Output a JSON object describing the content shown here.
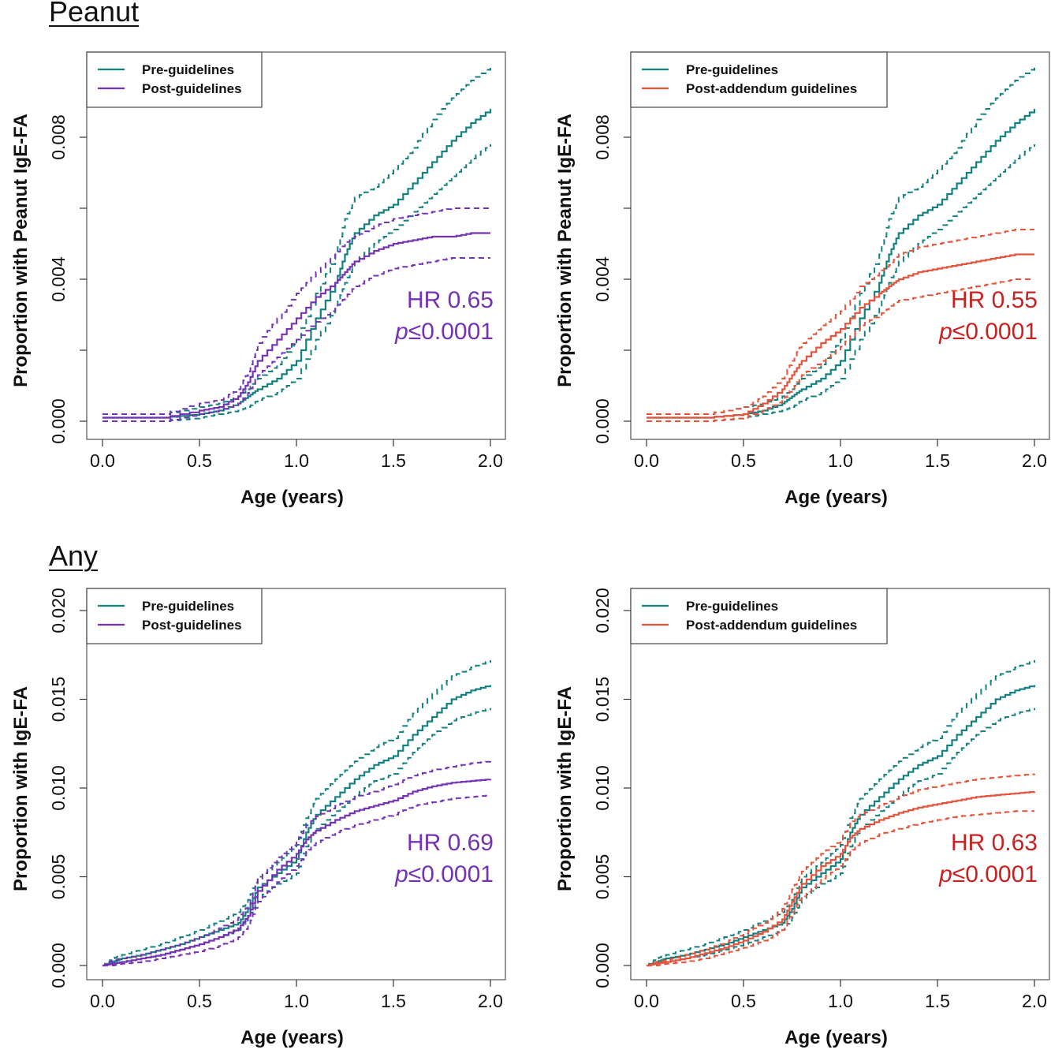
{
  "sections": [
    {
      "title": "Peanut"
    },
    {
      "title": "Any"
    }
  ],
  "colors": {
    "pre": "#148080",
    "post": "#7433b3",
    "addendum": "#e4533a",
    "hr_post": "#7433b3",
    "hr_addendum": "#c72222"
  },
  "chart_data": [
    {
      "type": "line",
      "xlabel": "Age (years)",
      "ylabel": "Proportion with Peanut IgE-FA",
      "xlim": [
        0,
        2
      ],
      "ylim": [
        0,
        0.01
      ],
      "xticks": [
        "0.0",
        "0.5",
        "1.0",
        "1.5",
        "2.0"
      ],
      "yticks": [
        "0.000",
        "",
        "0.004",
        "",
        "0.008"
      ],
      "ytick_values": [
        0,
        0.002,
        0.004,
        0.006,
        0.008
      ],
      "legend": {
        "position": "top-left",
        "entries": [
          "Pre-guidelines",
          "Post-guidelines"
        ]
      },
      "annotation": {
        "hr": "HR 0.65",
        "p_italic": "p",
        "p_rest": "≤0.0001"
      },
      "series": [
        {
          "name": "Pre-guidelines",
          "color_key": "pre",
          "x": [
            0,
            0.3,
            0.5,
            0.6,
            0.7,
            0.75,
            0.8,
            0.9,
            1.0,
            1.1,
            1.2,
            1.25,
            1.3,
            1.4,
            1.5,
            1.6,
            1.7,
            1.8,
            1.9,
            2.0
          ],
          "y": [
            0.0001,
            0.0001,
            0.0002,
            0.0003,
            0.0005,
            0.0007,
            0.0009,
            0.0012,
            0.0017,
            0.0029,
            0.0039,
            0.0047,
            0.0053,
            0.0058,
            0.0061,
            0.0067,
            0.0073,
            0.0079,
            0.0084,
            0.0088
          ],
          "lower": [
            0,
            0,
            0.0001,
            0.0002,
            0.0003,
            0.0004,
            0.0006,
            0.0008,
            0.0012,
            0.0023,
            0.0032,
            0.0039,
            0.0045,
            0.005,
            0.0054,
            0.0059,
            0.0064,
            0.0069,
            0.0074,
            0.0078
          ],
          "upper": [
            0.0002,
            0.0002,
            0.0004,
            0.0005,
            0.0007,
            0.0009,
            0.0012,
            0.0016,
            0.0023,
            0.0036,
            0.0047,
            0.0057,
            0.0063,
            0.0066,
            0.0071,
            0.0077,
            0.0085,
            0.0091,
            0.0096,
            0.01
          ]
        },
        {
          "name": "Post-guidelines",
          "color_key": "post",
          "x": [
            0,
            0.3,
            0.5,
            0.6,
            0.7,
            0.75,
            0.8,
            0.9,
            1.0,
            1.1,
            1.2,
            1.25,
            1.3,
            1.4,
            1.5,
            1.6,
            1.7,
            1.8,
            1.9,
            2.0
          ],
          "y": [
            0.0001,
            0.0001,
            0.0003,
            0.0004,
            0.0007,
            0.0011,
            0.0017,
            0.0023,
            0.0029,
            0.0035,
            0.0039,
            0.0042,
            0.0045,
            0.0048,
            0.005,
            0.0051,
            0.0052,
            0.0052,
            0.0053,
            0.0053
          ],
          "lower": [
            0,
            0,
            0.0002,
            0.0003,
            0.0005,
            0.0008,
            0.0013,
            0.0018,
            0.0023,
            0.0028,
            0.0032,
            0.0035,
            0.0038,
            0.0041,
            0.0043,
            0.0044,
            0.0045,
            0.0046,
            0.0046,
            0.0046
          ],
          "upper": [
            0.0002,
            0.0002,
            0.0005,
            0.0006,
            0.0009,
            0.0014,
            0.0022,
            0.0029,
            0.0036,
            0.0042,
            0.0047,
            0.005,
            0.0052,
            0.0055,
            0.0057,
            0.0058,
            0.0059,
            0.006,
            0.006,
            0.006
          ]
        }
      ]
    },
    {
      "type": "line",
      "xlabel": "Age (years)",
      "ylabel": "Proportion with Peanut IgE-FA",
      "xlim": [
        0,
        2
      ],
      "ylim": [
        0,
        0.01
      ],
      "xticks": [
        "0.0",
        "0.5",
        "1.0",
        "1.5",
        "2.0"
      ],
      "yticks": [
        "0.000",
        "",
        "0.004",
        "",
        "0.008"
      ],
      "ytick_values": [
        0,
        0.002,
        0.004,
        0.006,
        0.008
      ],
      "legend": {
        "position": "top-left",
        "entries": [
          "Pre-guidelines",
          "Post-addendum guidelines"
        ]
      },
      "annotation": {
        "hr": "HR 0.55",
        "p_italic": "p",
        "p_rest": "≤0.0001"
      },
      "series": [
        {
          "name": "Pre-guidelines",
          "color_key": "pre",
          "x": [
            0,
            0.3,
            0.5,
            0.6,
            0.7,
            0.75,
            0.8,
            0.9,
            1.0,
            1.1,
            1.2,
            1.25,
            1.3,
            1.4,
            1.5,
            1.6,
            1.7,
            1.8,
            1.9,
            2.0
          ],
          "y": [
            0.0001,
            0.0001,
            0.0002,
            0.0003,
            0.0005,
            0.0007,
            0.0009,
            0.0012,
            0.0017,
            0.0029,
            0.0039,
            0.0047,
            0.0053,
            0.0058,
            0.0061,
            0.0067,
            0.0073,
            0.0079,
            0.0084,
            0.0088
          ],
          "lower": [
            0,
            0,
            0.0001,
            0.0002,
            0.0003,
            0.0004,
            0.0006,
            0.0008,
            0.0012,
            0.0023,
            0.0032,
            0.0039,
            0.0045,
            0.005,
            0.0054,
            0.0059,
            0.0064,
            0.0069,
            0.0074,
            0.0078
          ],
          "upper": [
            0.0002,
            0.0002,
            0.0004,
            0.0005,
            0.0007,
            0.0009,
            0.0012,
            0.0016,
            0.0023,
            0.0036,
            0.0047,
            0.0057,
            0.0063,
            0.0066,
            0.0071,
            0.0077,
            0.0085,
            0.0091,
            0.0096,
            0.01
          ]
        },
        {
          "name": "Post-addendum guidelines",
          "color_key": "addendum",
          "x": [
            0,
            0.3,
            0.5,
            0.6,
            0.7,
            0.75,
            0.8,
            0.9,
            1.0,
            1.1,
            1.2,
            1.25,
            1.3,
            1.4,
            1.5,
            1.6,
            1.7,
            1.8,
            1.9,
            2.0
          ],
          "y": [
            0.0001,
            0.0001,
            0.0002,
            0.0005,
            0.0009,
            0.0013,
            0.0017,
            0.0022,
            0.0026,
            0.0032,
            0.0036,
            0.0038,
            0.004,
            0.0042,
            0.0043,
            0.0044,
            0.0045,
            0.0046,
            0.0047,
            0.0047
          ],
          "lower": [
            0,
            0,
            0.0001,
            0.0003,
            0.0006,
            0.0009,
            0.0013,
            0.0017,
            0.0021,
            0.0027,
            0.003,
            0.0032,
            0.0034,
            0.0035,
            0.0036,
            0.0037,
            0.0038,
            0.0039,
            0.004,
            0.004
          ],
          "upper": [
            0.0002,
            0.0002,
            0.0004,
            0.0007,
            0.0012,
            0.0017,
            0.0022,
            0.0027,
            0.0031,
            0.0038,
            0.0042,
            0.0044,
            0.0047,
            0.0049,
            0.005,
            0.0051,
            0.0052,
            0.0053,
            0.0054,
            0.0054
          ]
        }
      ]
    },
    {
      "type": "line",
      "xlabel": "Age (years)",
      "ylabel": "Proportion with IgE-FA",
      "xlim": [
        0,
        2
      ],
      "ylim": [
        0,
        0.02
      ],
      "xticks": [
        "0.0",
        "0.5",
        "1.0",
        "1.5",
        "2.0"
      ],
      "yticks": [
        "0.000",
        "0.005",
        "0.010",
        "0.015",
        "0.020"
      ],
      "ytick_values": [
        0,
        0.005,
        0.01,
        0.015,
        0.02
      ],
      "legend": {
        "position": "top-left",
        "entries": [
          "Pre-guidelines",
          "Post-guidelines"
        ]
      },
      "annotation": {
        "hr": "HR 0.69",
        "p_italic": "p",
        "p_rest": "≤0.0001"
      },
      "series": [
        {
          "name": "Pre-guidelines",
          "color_key": "pre",
          "x": [
            0,
            0.05,
            0.1,
            0.2,
            0.3,
            0.4,
            0.5,
            0.6,
            0.7,
            0.75,
            0.8,
            0.9,
            1.0,
            1.05,
            1.1,
            1.2,
            1.3,
            1.4,
            1.5,
            1.6,
            1.7,
            1.8,
            1.9,
            2.0
          ],
          "y": [
            0,
            0.0002,
            0.0004,
            0.0006,
            0.0009,
            0.0012,
            0.0016,
            0.002,
            0.0024,
            0.0032,
            0.0044,
            0.0052,
            0.006,
            0.0075,
            0.0085,
            0.0095,
            0.0105,
            0.0113,
            0.0118,
            0.013,
            0.014,
            0.015,
            0.0155,
            0.0158
          ],
          "lower": [
            0,
            0.0001,
            0.0002,
            0.0004,
            0.0006,
            0.0009,
            0.0012,
            0.0016,
            0.002,
            0.0027,
            0.0038,
            0.0046,
            0.0052,
            0.0067,
            0.0077,
            0.0087,
            0.0096,
            0.0104,
            0.0108,
            0.012,
            0.013,
            0.0138,
            0.0142,
            0.0145
          ],
          "upper": [
            0,
            0.0004,
            0.0006,
            0.0009,
            0.0012,
            0.0016,
            0.002,
            0.0025,
            0.003,
            0.0037,
            0.005,
            0.0058,
            0.0068,
            0.0083,
            0.0094,
            0.0105,
            0.0115,
            0.0123,
            0.0128,
            0.0142,
            0.0153,
            0.0163,
            0.0168,
            0.0172
          ]
        },
        {
          "name": "Post-guidelines",
          "color_key": "post",
          "x": [
            0,
            0.05,
            0.1,
            0.2,
            0.3,
            0.4,
            0.5,
            0.6,
            0.7,
            0.75,
            0.8,
            0.9,
            1.0,
            1.05,
            1.1,
            1.2,
            1.3,
            1.4,
            1.5,
            1.6,
            1.7,
            1.8,
            1.9,
            2.0
          ],
          "y": [
            0,
            0.0001,
            0.0002,
            0.0004,
            0.0006,
            0.0009,
            0.0012,
            0.0016,
            0.0021,
            0.0028,
            0.0042,
            0.0054,
            0.0063,
            0.0071,
            0.0076,
            0.0082,
            0.0087,
            0.009,
            0.0093,
            0.0098,
            0.0101,
            0.0103,
            0.0104,
            0.0105
          ],
          "lower": [
            0,
            0,
            0.0001,
            0.0002,
            0.0004,
            0.0006,
            0.0008,
            0.0011,
            0.0016,
            0.0022,
            0.0036,
            0.0047,
            0.0056,
            0.0064,
            0.0069,
            0.0075,
            0.0079,
            0.0082,
            0.0085,
            0.009,
            0.0092,
            0.0094,
            0.0095,
            0.0096
          ],
          "upper": [
            0,
            0.0003,
            0.0004,
            0.0006,
            0.0009,
            0.0012,
            0.0016,
            0.0021,
            0.0027,
            0.0034,
            0.0049,
            0.0061,
            0.007,
            0.0079,
            0.0084,
            0.009,
            0.0095,
            0.0098,
            0.0102,
            0.0107,
            0.011,
            0.0112,
            0.0114,
            0.0115
          ]
        }
      ]
    },
    {
      "type": "line",
      "xlabel": "Age (years)",
      "ylabel": "Proportion with IgE-FA",
      "xlim": [
        0,
        2
      ],
      "ylim": [
        0,
        0.02
      ],
      "xticks": [
        "0.0",
        "0.5",
        "1.0",
        "1.5",
        "2.0"
      ],
      "yticks": [
        "0.000",
        "0.005",
        "0.010",
        "0.015",
        "0.020"
      ],
      "ytick_values": [
        0,
        0.005,
        0.01,
        0.015,
        0.02
      ],
      "legend": {
        "position": "top-left",
        "entries": [
          "Pre-guidelines",
          "Post-addendum guidelines"
        ]
      },
      "annotation": {
        "hr": "HR 0.63",
        "p_italic": "p",
        "p_rest": "≤0.0001"
      },
      "series": [
        {
          "name": "Pre-guidelines",
          "color_key": "pre",
          "x": [
            0,
            0.05,
            0.1,
            0.2,
            0.3,
            0.4,
            0.5,
            0.6,
            0.7,
            0.75,
            0.8,
            0.9,
            1.0,
            1.05,
            1.1,
            1.2,
            1.3,
            1.4,
            1.5,
            1.6,
            1.7,
            1.8,
            1.9,
            2.0
          ],
          "y": [
            0,
            0.0002,
            0.0004,
            0.0006,
            0.0009,
            0.0012,
            0.0016,
            0.002,
            0.0024,
            0.0032,
            0.0044,
            0.0052,
            0.006,
            0.0075,
            0.0085,
            0.0095,
            0.0105,
            0.0113,
            0.0118,
            0.013,
            0.014,
            0.015,
            0.0155,
            0.0158
          ],
          "lower": [
            0,
            0.0001,
            0.0002,
            0.0004,
            0.0006,
            0.0009,
            0.0012,
            0.0016,
            0.002,
            0.0027,
            0.0038,
            0.0046,
            0.0052,
            0.0067,
            0.0077,
            0.0087,
            0.0096,
            0.0104,
            0.0108,
            0.012,
            0.013,
            0.0138,
            0.0142,
            0.0145
          ],
          "upper": [
            0,
            0.0004,
            0.0006,
            0.0009,
            0.0012,
            0.0016,
            0.002,
            0.0025,
            0.003,
            0.0037,
            0.005,
            0.0058,
            0.0068,
            0.0083,
            0.0094,
            0.0105,
            0.0115,
            0.0123,
            0.0128,
            0.0142,
            0.0153,
            0.0163,
            0.0168,
            0.0172
          ]
        },
        {
          "name": "Post-addendum guidelines",
          "color_key": "addendum",
          "x": [
            0,
            0.05,
            0.1,
            0.2,
            0.3,
            0.4,
            0.5,
            0.6,
            0.7,
            0.75,
            0.8,
            0.9,
            1.0,
            1.05,
            1.1,
            1.2,
            1.3,
            1.4,
            1.5,
            1.6,
            1.7,
            1.8,
            1.9,
            2.0
          ],
          "y": [
            0,
            0.0001,
            0.0002,
            0.0004,
            0.0007,
            0.001,
            0.0014,
            0.0019,
            0.0026,
            0.0036,
            0.0046,
            0.0056,
            0.0063,
            0.0072,
            0.0077,
            0.0082,
            0.0086,
            0.0089,
            0.0091,
            0.0093,
            0.0095,
            0.0096,
            0.0097,
            0.0098
          ],
          "lower": [
            0,
            0,
            0.0001,
            0.0002,
            0.0004,
            0.0007,
            0.001,
            0.0014,
            0.002,
            0.003,
            0.0039,
            0.0049,
            0.0056,
            0.0064,
            0.0069,
            0.0074,
            0.0077,
            0.008,
            0.0082,
            0.0084,
            0.0085,
            0.0086,
            0.0087,
            0.0087
          ],
          "upper": [
            0,
            0.0002,
            0.0003,
            0.0006,
            0.0009,
            0.0013,
            0.0018,
            0.0024,
            0.0032,
            0.0043,
            0.0053,
            0.0063,
            0.0071,
            0.008,
            0.0085,
            0.009,
            0.0095,
            0.0099,
            0.0101,
            0.0103,
            0.0105,
            0.0106,
            0.0107,
            0.0108
          ]
        }
      ]
    }
  ]
}
